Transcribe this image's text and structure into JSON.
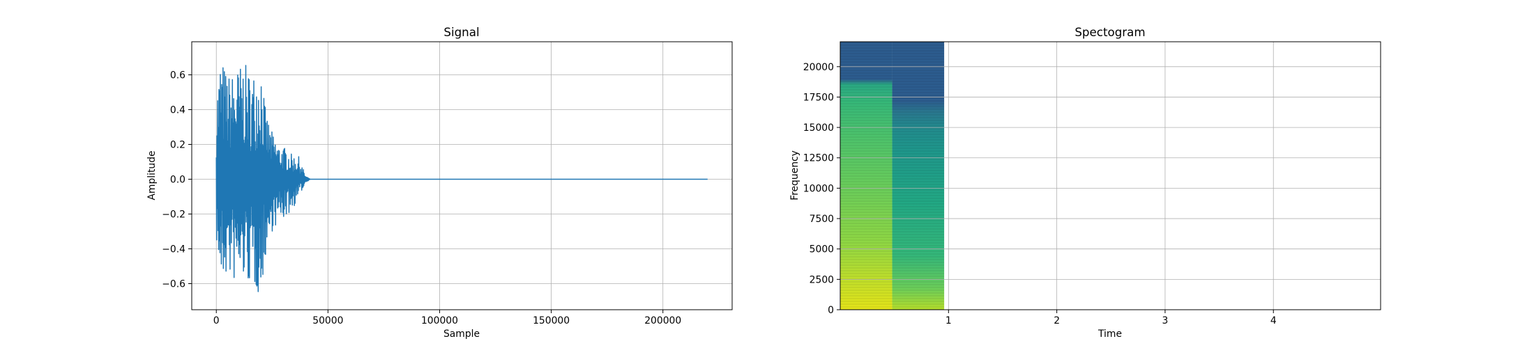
{
  "chart_data": [
    {
      "type": "line",
      "title": "Signal",
      "xlabel": "Sample",
      "ylabel": "Amplitude",
      "xlim": [
        -11000,
        231000
      ],
      "ylim": [
        -0.75,
        0.79
      ],
      "xticks": [
        0,
        50000,
        100000,
        150000,
        200000
      ],
      "xtick_labels": [
        "0",
        "50000",
        "100000",
        "150000",
        "200000"
      ],
      "yticks": [
        -0.6,
        -0.4,
        -0.2,
        0.0,
        0.2,
        0.4,
        0.6
      ],
      "ytick_labels": [
        "−0.6",
        "−0.4",
        "−0.2",
        "0.0",
        "0.2",
        "0.4",
        "0.6"
      ],
      "grid": true,
      "color": "#1f77b4",
      "series": [
        {
          "x": [
            0,
            2000,
            5000,
            8000,
            12000,
            16000,
            20000,
            22000,
            25000,
            28000,
            31000,
            34000,
            37000,
            40000,
            42000,
            45000,
            220000
          ],
          "envelope_upper": [
            0.5,
            0.72,
            0.6,
            0.62,
            0.68,
            0.6,
            0.7,
            0.4,
            0.27,
            0.2,
            0.18,
            0.14,
            0.13,
            0.02,
            0.0,
            0.0,
            0.0
          ],
          "envelope_lower": [
            -0.35,
            -0.63,
            -0.55,
            -0.6,
            -0.58,
            -0.62,
            -0.68,
            -0.45,
            -0.3,
            -0.25,
            -0.22,
            -0.18,
            -0.1,
            -0.02,
            0.0,
            0.0,
            0.0
          ]
        }
      ]
    },
    {
      "type": "heatmap",
      "title": "Spectogram",
      "xlabel": "Time",
      "ylabel": "Frequency",
      "xlim": [
        0,
        4.99
      ],
      "ylim": [
        0,
        22050
      ],
      "xticks": [
        1,
        2,
        3,
        4
      ],
      "xtick_labels": [
        "1",
        "2",
        "3",
        "4"
      ],
      "yticks": [
        0,
        2500,
        5000,
        7500,
        10000,
        12500,
        15000,
        17500,
        20000
      ],
      "ytick_labels": [
        "0",
        "2500",
        "5000",
        "7500",
        "10000",
        "12500",
        "15000",
        "17500",
        "20000"
      ],
      "grid": true,
      "data_extent_time": [
        0,
        0.96
      ],
      "onset_change_time": 0.48,
      "colormap": "viridis",
      "colors": {
        "low": "#2c5c8e",
        "mid_low": "#22808e",
        "mid": "#2aa883",
        "mid_high": "#6bcd5a",
        "high": "#c4df29",
        "peak": "#e4e419"
      }
    }
  ]
}
